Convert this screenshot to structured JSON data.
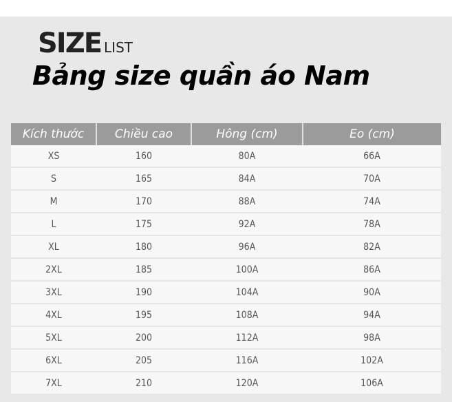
{
  "logo": {
    "big": "SIZE",
    "small": "LIST"
  },
  "title": "Bảng size quần áo Nam",
  "table": {
    "headers": [
      "Kích thước",
      "Chiều cao",
      "Hông (cm)",
      "Eo (cm)"
    ],
    "rows": [
      [
        "XS",
        "160",
        "80A",
        "66A"
      ],
      [
        "S",
        "165",
        "84A",
        "70A"
      ],
      [
        "M",
        "170",
        "88A",
        "74A"
      ],
      [
        "L",
        "175",
        "92A",
        "78A"
      ],
      [
        "XL",
        "180",
        "96A",
        "82A"
      ],
      [
        "2XL",
        "185",
        "100A",
        "86A"
      ],
      [
        "3XL",
        "190",
        "104A",
        "90A"
      ],
      [
        "4XL",
        "195",
        "108A",
        "94A"
      ],
      [
        "5XL",
        "200",
        "112A",
        "98A"
      ],
      [
        "6XL",
        "205",
        "116A",
        "102A"
      ],
      [
        "7XL",
        "210",
        "120A",
        "106A"
      ]
    ]
  }
}
